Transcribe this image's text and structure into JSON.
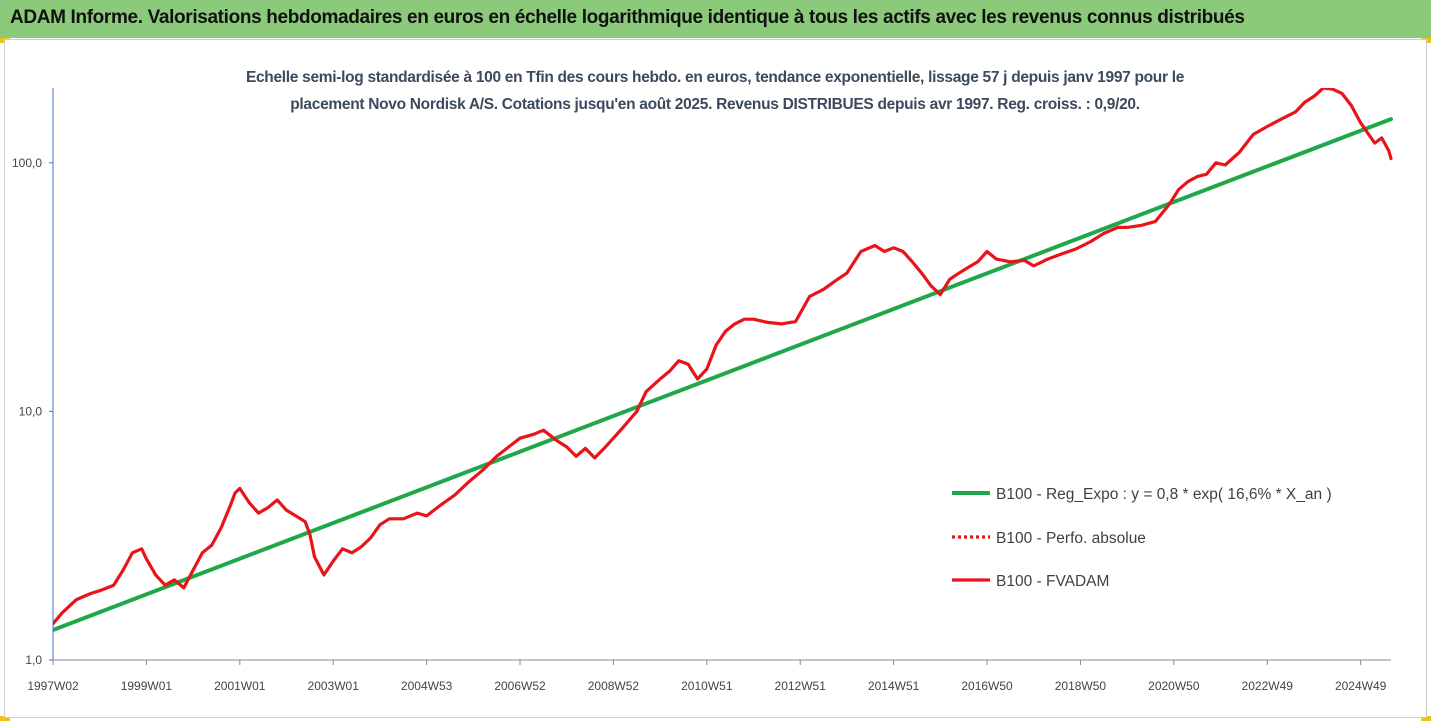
{
  "banner": {
    "title": "ADAM Informe. Valorisations hebdomadaires en euros en échelle logarithmique identique à tous les actifs avec les revenus connus distribués",
    "color": "#8bc97b"
  },
  "chart_data": {
    "type": "line",
    "title_lines": [
      "Echelle semi-log standardisée à 100 en Tfin des cours hebdo. en euros, tendance exponentielle, lissage 57 j depuis janv 1997 pour le",
      "placement Novo Nordisk A/S. Cotations jusqu'en août 2025. Revenus DISTRIBUES depuis avr 1997. Reg. croiss. : 0,9/20."
    ],
    "y_scale": "log",
    "ylim": [
      1,
      200
    ],
    "y_ticks": [
      {
        "value": 1,
        "label": "1,0"
      },
      {
        "value": 10,
        "label": "10,0"
      },
      {
        "value": 100,
        "label": "100,0"
      }
    ],
    "xlim": [
      1997.0,
      2025.65
    ],
    "x_ticks": [
      {
        "value": 1997.0,
        "label": "1997W02"
      },
      {
        "value": 1999.0,
        "label": "1999W01"
      },
      {
        "value": 2001.0,
        "label": "2001W01"
      },
      {
        "value": 2003.0,
        "label": "2003W01"
      },
      {
        "value": 2005.0,
        "label": "2004W53"
      },
      {
        "value": 2007.0,
        "label": "2006W52"
      },
      {
        "value": 2009.0,
        "label": "2008W52"
      },
      {
        "value": 2011.0,
        "label": "2010W51"
      },
      {
        "value": 2013.0,
        "label": "2012W51"
      },
      {
        "value": 2015.0,
        "label": "2014W51"
      },
      {
        "value": 2017.0,
        "label": "2016W50"
      },
      {
        "value": 2019.0,
        "label": "2018W50"
      },
      {
        "value": 2021.0,
        "label": "2020W50"
      },
      {
        "value": 2023.0,
        "label": "2022W49"
      },
      {
        "value": 2025.0,
        "label": "2024W49"
      }
    ],
    "grid": false,
    "legend_position": "bottom-right",
    "series": [
      {
        "name": "B100 - Reg_Expo : y = 0,8 * exp( 16,6% *  X_an )",
        "color": "#1fa84a",
        "style": "solid",
        "x": [
          1997.0,
          2025.65
        ],
        "y": [
          1.32,
          150
        ]
      },
      {
        "name": "B100 - Perfo. absolue",
        "color": "#e8141a",
        "style": "dotted",
        "x": [],
        "y": []
      },
      {
        "name": "B100 - FVADAM",
        "color": "#e8141a",
        "style": "solid",
        "x": [
          1997.0,
          1997.2,
          1997.5,
          1997.8,
          1998.0,
          1998.3,
          1998.5,
          1998.7,
          1998.9,
          1999.0,
          1999.2,
          1999.4,
          1999.6,
          1999.8,
          2000.0,
          2000.2,
          2000.4,
          2000.6,
          2000.8,
          2000.9,
          2001.0,
          2001.2,
          2001.4,
          2001.6,
          2001.8,
          2002.0,
          2002.2,
          2002.4,
          2002.5,
          2002.6,
          2002.8,
          2003.0,
          2003.2,
          2003.4,
          2003.6,
          2003.8,
          2004.0,
          2004.2,
          2004.5,
          2004.8,
          2005.0,
          2005.3,
          2005.6,
          2005.9,
          2006.2,
          2006.5,
          2006.8,
          2007.0,
          2007.3,
          2007.5,
          2007.8,
          2008.0,
          2008.2,
          2008.4,
          2008.6,
          2008.8,
          2009.0,
          2009.2,
          2009.5,
          2009.7,
          2010.0,
          2010.2,
          2010.4,
          2010.6,
          2010.8,
          2011.0,
          2011.2,
          2011.4,
          2011.6,
          2011.8,
          2012.0,
          2012.3,
          2012.6,
          2012.9,
          2013.2,
          2013.5,
          2013.8,
          2014.0,
          2014.3,
          2014.6,
          2014.8,
          2015.0,
          2015.2,
          2015.4,
          2015.6,
          2015.8,
          2016.0,
          2016.2,
          2016.4,
          2016.6,
          2016.8,
          2017.0,
          2017.2,
          2017.5,
          2017.8,
          2018.0,
          2018.3,
          2018.6,
          2018.9,
          2019.2,
          2019.5,
          2019.8,
          2020.0,
          2020.3,
          2020.6,
          2020.9,
          2021.1,
          2021.3,
          2021.5,
          2021.7,
          2021.9,
          2022.1,
          2022.4,
          2022.7,
          2023.0,
          2023.3,
          2023.6,
          2023.8,
          2024.0,
          2024.2,
          2024.4,
          2024.6,
          2024.8,
          2025.0,
          2025.15,
          2025.3,
          2025.45,
          2025.6,
          2025.65
        ],
        "y": [
          1.4,
          1.55,
          1.75,
          1.85,
          1.9,
          2.0,
          2.3,
          2.7,
          2.8,
          2.55,
          2.2,
          2.0,
          2.1,
          1.95,
          2.3,
          2.7,
          2.9,
          3.4,
          4.2,
          4.7,
          4.9,
          4.3,
          3.9,
          4.1,
          4.4,
          4.0,
          3.8,
          3.6,
          3.2,
          2.6,
          2.2,
          2.5,
          2.8,
          2.7,
          2.85,
          3.1,
          3.5,
          3.7,
          3.7,
          3.9,
          3.8,
          4.2,
          4.6,
          5.2,
          5.8,
          6.6,
          7.3,
          7.8,
          8.1,
          8.4,
          7.6,
          7.2,
          6.6,
          7.1,
          6.5,
          7.1,
          7.8,
          8.6,
          10.0,
          12.0,
          13.5,
          14.5,
          16.0,
          15.5,
          13.5,
          14.8,
          18.5,
          21.0,
          22.5,
          23.5,
          23.5,
          22.8,
          22.5,
          23.0,
          29.0,
          31.0,
          34.0,
          36.0,
          44.0,
          46.5,
          44.0,
          45.5,
          44.0,
          40.0,
          36.0,
          32.0,
          29.5,
          34.0,
          36.0,
          38.0,
          40.0,
          44.0,
          41.0,
          40.0,
          40.5,
          38.5,
          41.0,
          43.0,
          45.0,
          48.0,
          52.0,
          55.0,
          55.0,
          56.0,
          58.0,
          68.0,
          78.0,
          84.0,
          88.0,
          90.0,
          100.0,
          98.0,
          110.0,
          130.0,
          140.0,
          150.0,
          160.0,
          175.0,
          185.0,
          200.0,
          198.0,
          190.0,
          170.0,
          145.0,
          132.0,
          120.0,
          126.0,
          112.0,
          104.0
        ]
      }
    ]
  }
}
